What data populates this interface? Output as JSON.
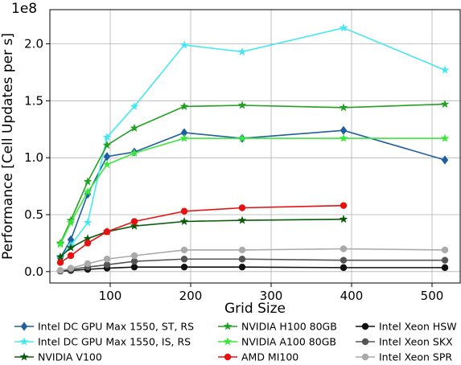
{
  "chart_data": {
    "type": "line",
    "title": "",
    "xlabel": "Grid Size",
    "ylabel": "Performance [Cell Updates per s]",
    "y_multiplier_label": "1e8",
    "xlim": [
      25,
      535
    ],
    "ylim": [
      -0.1,
      2.3
    ],
    "xticks": [
      100,
      200,
      300,
      400,
      500
    ],
    "yticks": [
      0.0,
      0.5,
      1.0,
      1.5,
      2.0
    ],
    "xtick_labels": [
      "100",
      "200",
      "300",
      "400",
      "500"
    ],
    "ytick_labels": [
      "0.0",
      "0.5",
      "1.0",
      "1.5",
      "2.0"
    ],
    "grid": true,
    "legend_position": "bottom",
    "series": [
      {
        "name": "Intel DC GPU Max 1550, ST, RS",
        "color": "#1f5fa0",
        "marker": "diamond",
        "x": [
          38,
          51,
          72,
          96,
          130,
          192,
          264,
          390,
          516
        ],
        "y": [
          0.12,
          0.28,
          0.68,
          1.01,
          1.05,
          1.22,
          1.17,
          1.24,
          0.98
        ]
      },
      {
        "name": "Intel DC GPU Max 1550, IS, RS",
        "color": "#44e8f0",
        "marker": "star",
        "x": [
          38,
          51,
          72,
          96,
          130,
          192,
          264,
          390,
          516
        ],
        "y": [
          0.12,
          0.23,
          0.43,
          1.18,
          1.45,
          1.99,
          1.93,
          2.14,
          1.77
        ]
      },
      {
        "name": "NVIDIA V100",
        "color": "#0a5a0a",
        "marker": "star",
        "x": [
          38,
          51,
          72,
          96,
          130,
          192,
          264,
          390
        ],
        "y": [
          0.13,
          0.21,
          0.29,
          0.35,
          0.4,
          0.44,
          0.45,
          0.46
        ]
      },
      {
        "name": "NVIDIA H100 80GB",
        "color": "#22a022",
        "marker": "star",
        "x": [
          38,
          51,
          72,
          96,
          130,
          192,
          264,
          390,
          516
        ],
        "y": [
          0.25,
          0.45,
          0.79,
          1.11,
          1.26,
          1.45,
          1.46,
          1.44,
          1.47
        ]
      },
      {
        "name": "NVIDIA A100 80GB",
        "color": "#3ae83a",
        "marker": "star",
        "x": [
          38,
          51,
          72,
          96,
          130,
          192,
          264,
          390,
          516
        ],
        "y": [
          0.24,
          0.43,
          0.7,
          0.94,
          1.04,
          1.17,
          1.17,
          1.17,
          1.17
        ]
      },
      {
        "name": "AMD MI100",
        "color": "#e81010",
        "marker": "circle",
        "x": [
          38,
          51,
          72,
          96,
          130,
          192,
          264,
          390
        ],
        "y": [
          0.08,
          0.14,
          0.25,
          0.35,
          0.44,
          0.53,
          0.56,
          0.58
        ]
      },
      {
        "name": "Intel Xeon HSW",
        "color": "#111111",
        "marker": "circle",
        "x": [
          38,
          51,
          72,
          96,
          130,
          192,
          264,
          390,
          516
        ],
        "y": [
          0.005,
          0.01,
          0.02,
          0.03,
          0.04,
          0.04,
          0.04,
          0.035,
          0.035
        ]
      },
      {
        "name": "Intel Xeon SKX",
        "color": "#555555",
        "marker": "circle",
        "x": [
          38,
          51,
          72,
          96,
          130,
          192,
          264,
          390,
          516
        ],
        "y": [
          0.01,
          0.02,
          0.04,
          0.06,
          0.09,
          0.11,
          0.11,
          0.1,
          0.1
        ]
      },
      {
        "name": "Intel Xeon SPR",
        "color": "#aaaaaa",
        "marker": "circle",
        "x": [
          38,
          51,
          72,
          96,
          130,
          192,
          264,
          390,
          516
        ],
        "y": [
          0.01,
          0.03,
          0.07,
          0.11,
          0.14,
          0.19,
          0.19,
          0.2,
          0.19
        ]
      }
    ]
  }
}
